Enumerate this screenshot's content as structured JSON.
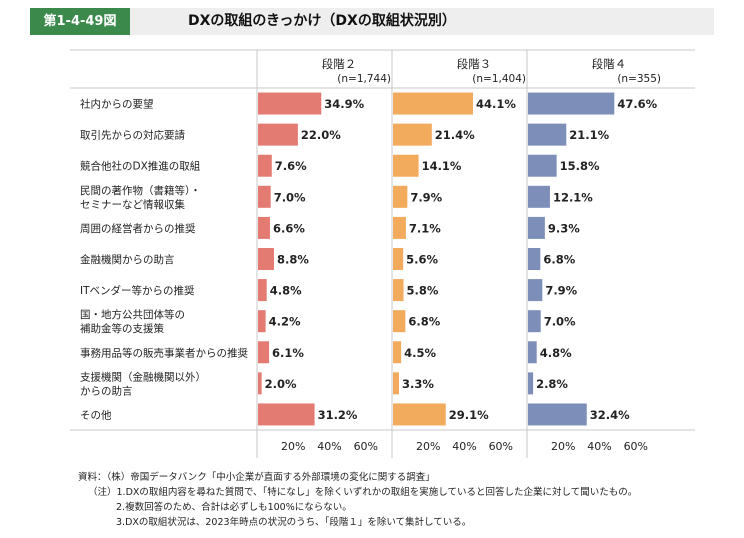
{
  "figure": {
    "label": "第1-4-49図",
    "title": "DXの取組のきっかけ（DXの取組状況別）"
  },
  "chart_data": {
    "type": "bar",
    "orientation": "horizontal",
    "categories": [
      [
        "社内からの要望"
      ],
      [
        "取引先からの対応要請"
      ],
      [
        "競合他社のDX推進の取組"
      ],
      [
        "民間の著作物（書籍等）・",
        "セミナーなど情報収集"
      ],
      [
        "周囲の経営者からの推奨"
      ],
      [
        "金融機関からの助言"
      ],
      [
        "ITベンダー等からの推奨"
      ],
      [
        "国・地方公共団体等の",
        "補助金等の支援策"
      ],
      [
        "事務用品等の販売事業者からの推奨"
      ],
      [
        "支援機関（金融機関以外）",
        "からの助言"
      ],
      [
        "その他"
      ]
    ],
    "panels": [
      {
        "name": "段階２",
        "n": "(n=1,744)",
        "color": "#e37b72",
        "values": [
          34.9,
          22.0,
          7.6,
          7.0,
          6.6,
          8.8,
          4.8,
          4.2,
          6.1,
          2.0,
          31.2
        ]
      },
      {
        "name": "段階３",
        "n": "(n=1,404)",
        "color": "#f2aa5c",
        "values": [
          44.1,
          21.4,
          14.1,
          7.9,
          7.1,
          5.6,
          5.8,
          6.8,
          4.5,
          3.3,
          29.1
        ]
      },
      {
        "name": "段階４",
        "n": "(n=355)",
        "color": "#7d8fb9",
        "values": [
          47.6,
          21.1,
          15.8,
          12.1,
          9.3,
          6.8,
          7.9,
          7.0,
          4.8,
          2.8,
          32.4
        ]
      }
    ],
    "value_suffix": "%",
    "xticks": [
      "20%",
      "40%",
      "60%"
    ],
    "tick_values": [
      20,
      40,
      60
    ],
    "xlim": [
      0,
      75
    ]
  },
  "notes": {
    "source": "資料：（株）帝国データバンク「中小企業が直面する外部環境の変化に関する調査」",
    "note1": "（注）1.DXの取組内容を尋ねた質問で、「特になし」を除くいずれかの取組を実施していると回答した企業に対して聞いたもの。",
    "note2": "2.複数回答のため、合計は必ずしも100%にならない。",
    "note3": "3.DXの取組状況は、2023年時点の状況のうち、「段階１」を除いて集計している。"
  }
}
